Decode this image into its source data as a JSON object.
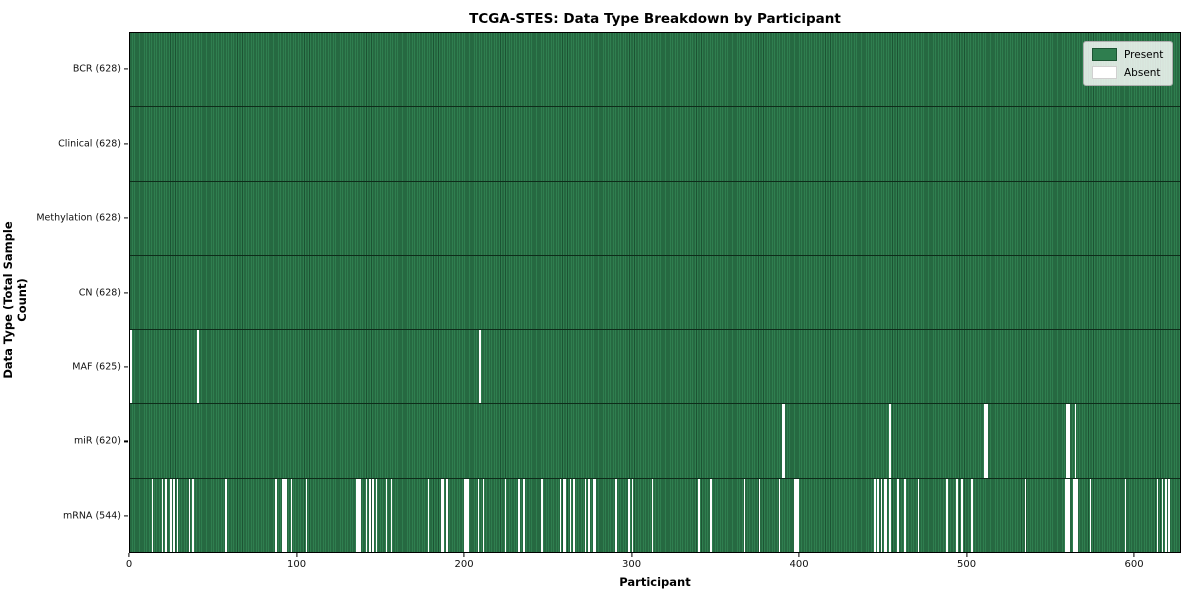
{
  "chart_data": {
    "type": "heatmap",
    "title": "TCGA-STES: Data Type Breakdown by Participant",
    "xlabel": "Participant",
    "ylabel": "Data Type (Total Sample Count)",
    "total_participants": 628,
    "x_ticks": [
      0,
      100,
      200,
      300,
      400,
      500,
      600
    ],
    "xlim": [
      0,
      628
    ],
    "grid": false,
    "legend_position": "upper right",
    "colors": {
      "present": "#2f7e4f",
      "present_edge": "#1c5433",
      "absent": "#ffffff"
    },
    "legend": [
      {
        "key": "present",
        "label": "Present",
        "color": "#2f7e4f",
        "edge": "#1c5433"
      },
      {
        "key": "absent",
        "label": "Absent",
        "color": "#ffffff",
        "edge": "#d0d0d0"
      }
    ],
    "series": [
      {
        "key": "bcr",
        "label": "BCR (628)",
        "present_count": 628,
        "absent_indices": []
      },
      {
        "key": "clinical",
        "label": "Clinical (628)",
        "present_count": 628,
        "absent_indices": []
      },
      {
        "key": "methylation",
        "label": "Methylation (628)",
        "present_count": 628,
        "absent_indices": []
      },
      {
        "key": "cn",
        "label": "CN (628)",
        "present_count": 628,
        "absent_indices": []
      },
      {
        "key": "maf",
        "label": "MAF (625)",
        "present_count": 625,
        "absent_indices": [
          0,
          40,
          209
        ]
      },
      {
        "key": "mir",
        "label": "miR (620)",
        "present_count": 620,
        "absent_indices": [
          390,
          391,
          454,
          511,
          512,
          560,
          561,
          565
        ]
      },
      {
        "key": "mrna",
        "label": "mRNA (544)",
        "present_count": 544,
        "absent_indices": [
          13,
          19,
          21,
          24,
          26,
          28,
          35,
          37,
          57,
          87,
          91,
          92,
          93,
          96,
          105,
          135,
          136,
          137,
          141,
          143,
          145,
          147,
          153,
          156,
          178,
          186,
          187,
          189,
          200,
          201,
          202,
          208,
          211,
          224,
          232,
          235,
          246,
          257,
          259,
          260,
          263,
          265,
          272,
          274,
          277,
          278,
          290,
          298,
          300,
          312,
          340,
          347,
          367,
          376,
          388,
          397,
          398,
          399,
          445,
          447,
          449,
          451,
          452,
          454,
          459,
          463,
          471,
          488,
          494,
          497,
          503,
          535,
          559,
          560,
          561,
          564,
          565,
          566,
          574,
          595,
          614,
          617,
          619,
          621
        ]
      }
    ]
  }
}
